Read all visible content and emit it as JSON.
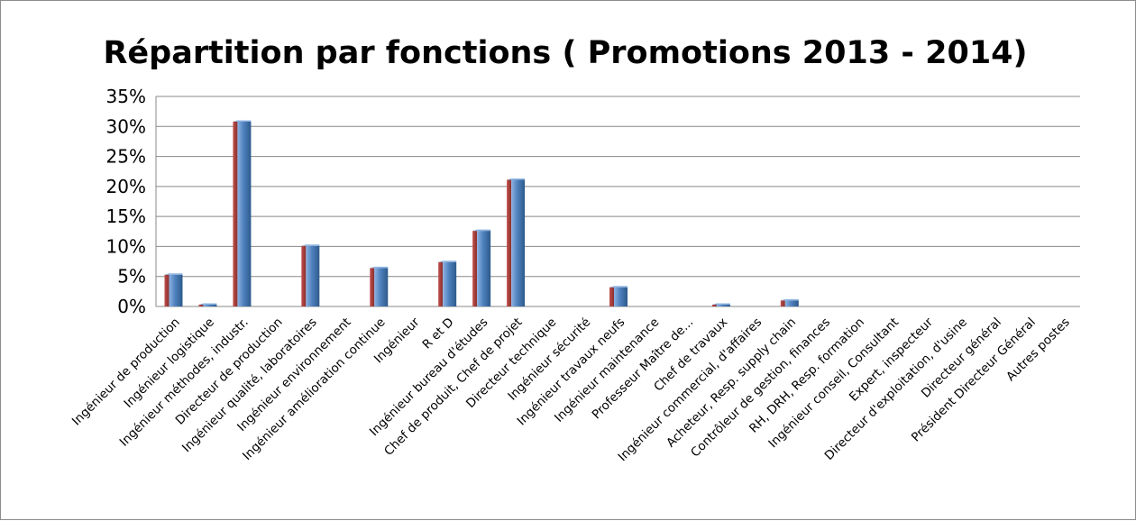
{
  "chart_data": {
    "type": "bar",
    "title": "Répartition par fonctions ( Promotions 2013 - 2014)",
    "xlabel": "",
    "ylabel": "",
    "ylim": [
      0,
      0.35
    ],
    "ytick_values": [
      0,
      0.05,
      0.1,
      0.15,
      0.2,
      0.25,
      0.3,
      0.35
    ],
    "ytick_labels": [
      "0%",
      "5%",
      "10%",
      "15%",
      "20%",
      "25%",
      "30%",
      "35%"
    ],
    "grid": true,
    "legend": "none",
    "categories": [
      "Ingénieur de production",
      "Ingénieur logistique",
      "Ingénieur méthodes, industr.",
      "Directeur de production",
      "Ingénieur qualité, laboratoires",
      "Ingénieur environnement",
      "Ingénieur amélioration continue",
      "Ingénieur",
      "R et D",
      "Ingénieur bureau d'études",
      "Chef de produit, Chef de projet",
      "Directeur technique",
      "Ingénieur sécurité",
      "Ingénieur travaux neufs",
      "Ingénieur maintenance",
      "Professeur Maître de...",
      "Chef de travaux",
      "Ingénieur commercial, d'affaires",
      "Acheteur, Resp. supply chain",
      "Contrôleur de gestion, finances",
      "RH, DRH, Resp. formation",
      "Ingénieur conseil, Consultant",
      "Expert, inspecteur",
      "Directeur d'exploitation, d'usine",
      "Directeur général",
      "Président Directeur Général",
      "Autres postes"
    ],
    "series": [
      {
        "values": [
          0.053,
          0.003,
          0.308,
          0,
          0.101,
          0,
          0.064,
          0,
          0.074,
          0.126,
          0.211,
          0,
          0,
          0.032,
          0,
          0,
          0.003,
          0,
          0.01,
          0,
          0,
          0,
          0,
          0,
          0,
          0,
          0
        ]
      }
    ],
    "bar_colors": {
      "front": "#4f81bd",
      "front_light": "#8db3e2",
      "front_dark": "#2c5a8c",
      "side": "#c0504d",
      "side_dark": "#8b2f2c"
    },
    "grid_color": "#888888"
  }
}
